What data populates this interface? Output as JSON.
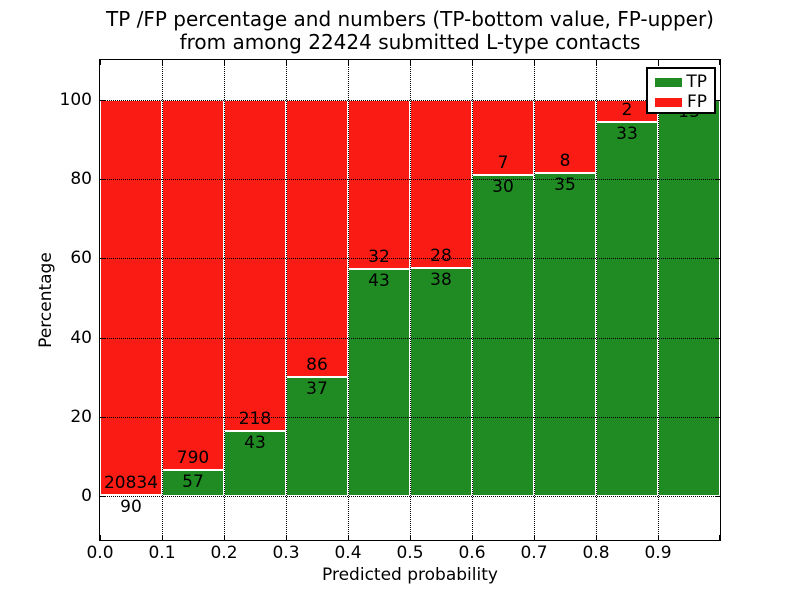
{
  "chart_data": {
    "type": "bar",
    "stacked": true,
    "title_line1": "TP /FP percentage and numbers (TP-bottom value, FP-upper)",
    "title_line2": "from among 22424 submitted L-type contacts",
    "title": "TP /FP percentage and numbers (TP-bottom value, FP-upper) from among 22424 submitted L-type contacts",
    "total_contacts": 22424,
    "xlabel": "Predicted probability",
    "ylabel": "Percentage",
    "bin_edges": [
      0.0,
      0.1,
      0.2,
      0.3,
      0.4,
      0.5,
      0.6,
      0.7,
      0.8,
      0.9,
      1.0
    ],
    "series": [
      {
        "name": "TP",
        "color": "#208b23",
        "counts": [
          90,
          57,
          43,
          37,
          43,
          38,
          30,
          35,
          33,
          13
        ],
        "percent": [
          0.43,
          6.73,
          16.48,
          30.08,
          57.33,
          57.58,
          81.08,
          81.4,
          94.29,
          100.0
        ]
      },
      {
        "name": "FP",
        "color": "#fa1c14",
        "counts": [
          20834,
          790,
          218,
          86,
          32,
          28,
          7,
          8,
          2,
          0
        ],
        "percent": [
          99.57,
          93.27,
          83.52,
          69.92,
          42.67,
          42.42,
          18.92,
          18.6,
          5.71,
          0.0
        ]
      }
    ],
    "xtick_labels": [
      "0.0",
      "0.1",
      "0.2",
      "0.3",
      "0.4",
      "0.5",
      "0.6",
      "0.7",
      "0.8",
      "0.9"
    ],
    "ytick_values": [
      0,
      20,
      40,
      60,
      80,
      100
    ],
    "xlim": [
      0.0,
      1.0
    ],
    "ylim": [
      -11,
      110
    ],
    "grid": {
      "style": "dotted",
      "color": "#000000"
    },
    "legend": {
      "position": "upper right",
      "entries": [
        {
          "label": "TP",
          "color": "#208b23"
        },
        {
          "label": "FP",
          "color": "#fa1c14"
        }
      ]
    },
    "bar_edge_color": "#ffffff",
    "label_note": "TP count printed below segment boundary, FP count printed above it"
  }
}
